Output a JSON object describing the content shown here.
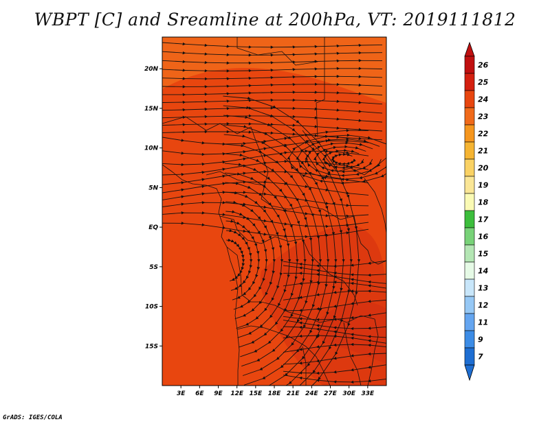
{
  "title": "WBPT [C] and Sreamline at 200hPa, VT: 2019111812",
  "credit": "GrADS: IGES/COLA",
  "map": {
    "lon_range": [
      0,
      36
    ],
    "lat_range": [
      -20,
      24
    ],
    "lat_ticks": [
      {
        "value": 20,
        "label": "20N"
      },
      {
        "value": 15,
        "label": "15N"
      },
      {
        "value": 10,
        "label": "10N"
      },
      {
        "value": 5,
        "label": "5N"
      },
      {
        "value": 0,
        "label": "EQ"
      },
      {
        "value": -5,
        "label": "5S"
      },
      {
        "value": -10,
        "label": "10S"
      },
      {
        "value": -15,
        "label": "15S"
      }
    ],
    "lon_ticks": [
      {
        "value": 3,
        "label": "3E"
      },
      {
        "value": 6,
        "label": "6E"
      },
      {
        "value": 9,
        "label": "9E"
      },
      {
        "value": 12,
        "label": "12E"
      },
      {
        "value": 15,
        "label": "15E"
      },
      {
        "value": 18,
        "label": "18E"
      },
      {
        "value": 21,
        "label": "21E"
      },
      {
        "value": 24,
        "label": "24E"
      },
      {
        "value": 27,
        "label": "27E"
      },
      {
        "value": 30,
        "label": "30E"
      },
      {
        "value": 33,
        "label": "33E"
      }
    ],
    "field_colors": {
      "background": "#e8460f",
      "warmer": "#d43010",
      "cooler_north": "#f06a1a"
    }
  },
  "colorbar": {
    "entries": [
      {
        "label": "26",
        "color": "#c01010"
      },
      {
        "label": "25",
        "color": "#d42010"
      },
      {
        "label": "24",
        "color": "#e8460f"
      },
      {
        "label": "23",
        "color": "#f06a1a"
      },
      {
        "label": "22",
        "color": "#f5961e"
      },
      {
        "label": "21",
        "color": "#f5b432"
      },
      {
        "label": "20",
        "color": "#fad264"
      },
      {
        "label": "19",
        "color": "#fae696"
      },
      {
        "label": "18",
        "color": "#fafab4"
      },
      {
        "label": "17",
        "color": "#3cbe3c"
      },
      {
        "label": "16",
        "color": "#78d278"
      },
      {
        "label": "15",
        "color": "#b4e6b4"
      },
      {
        "label": "14",
        "color": "#e6fae6"
      },
      {
        "label": "13",
        "color": "#c8e6fa"
      },
      {
        "label": "12",
        "color": "#96c8f5"
      },
      {
        "label": "11",
        "color": "#64a5f0"
      },
      {
        "label": "9",
        "color": "#3c8ce6"
      },
      {
        "label": "7",
        "color": "#1e6ed2"
      }
    ]
  }
}
